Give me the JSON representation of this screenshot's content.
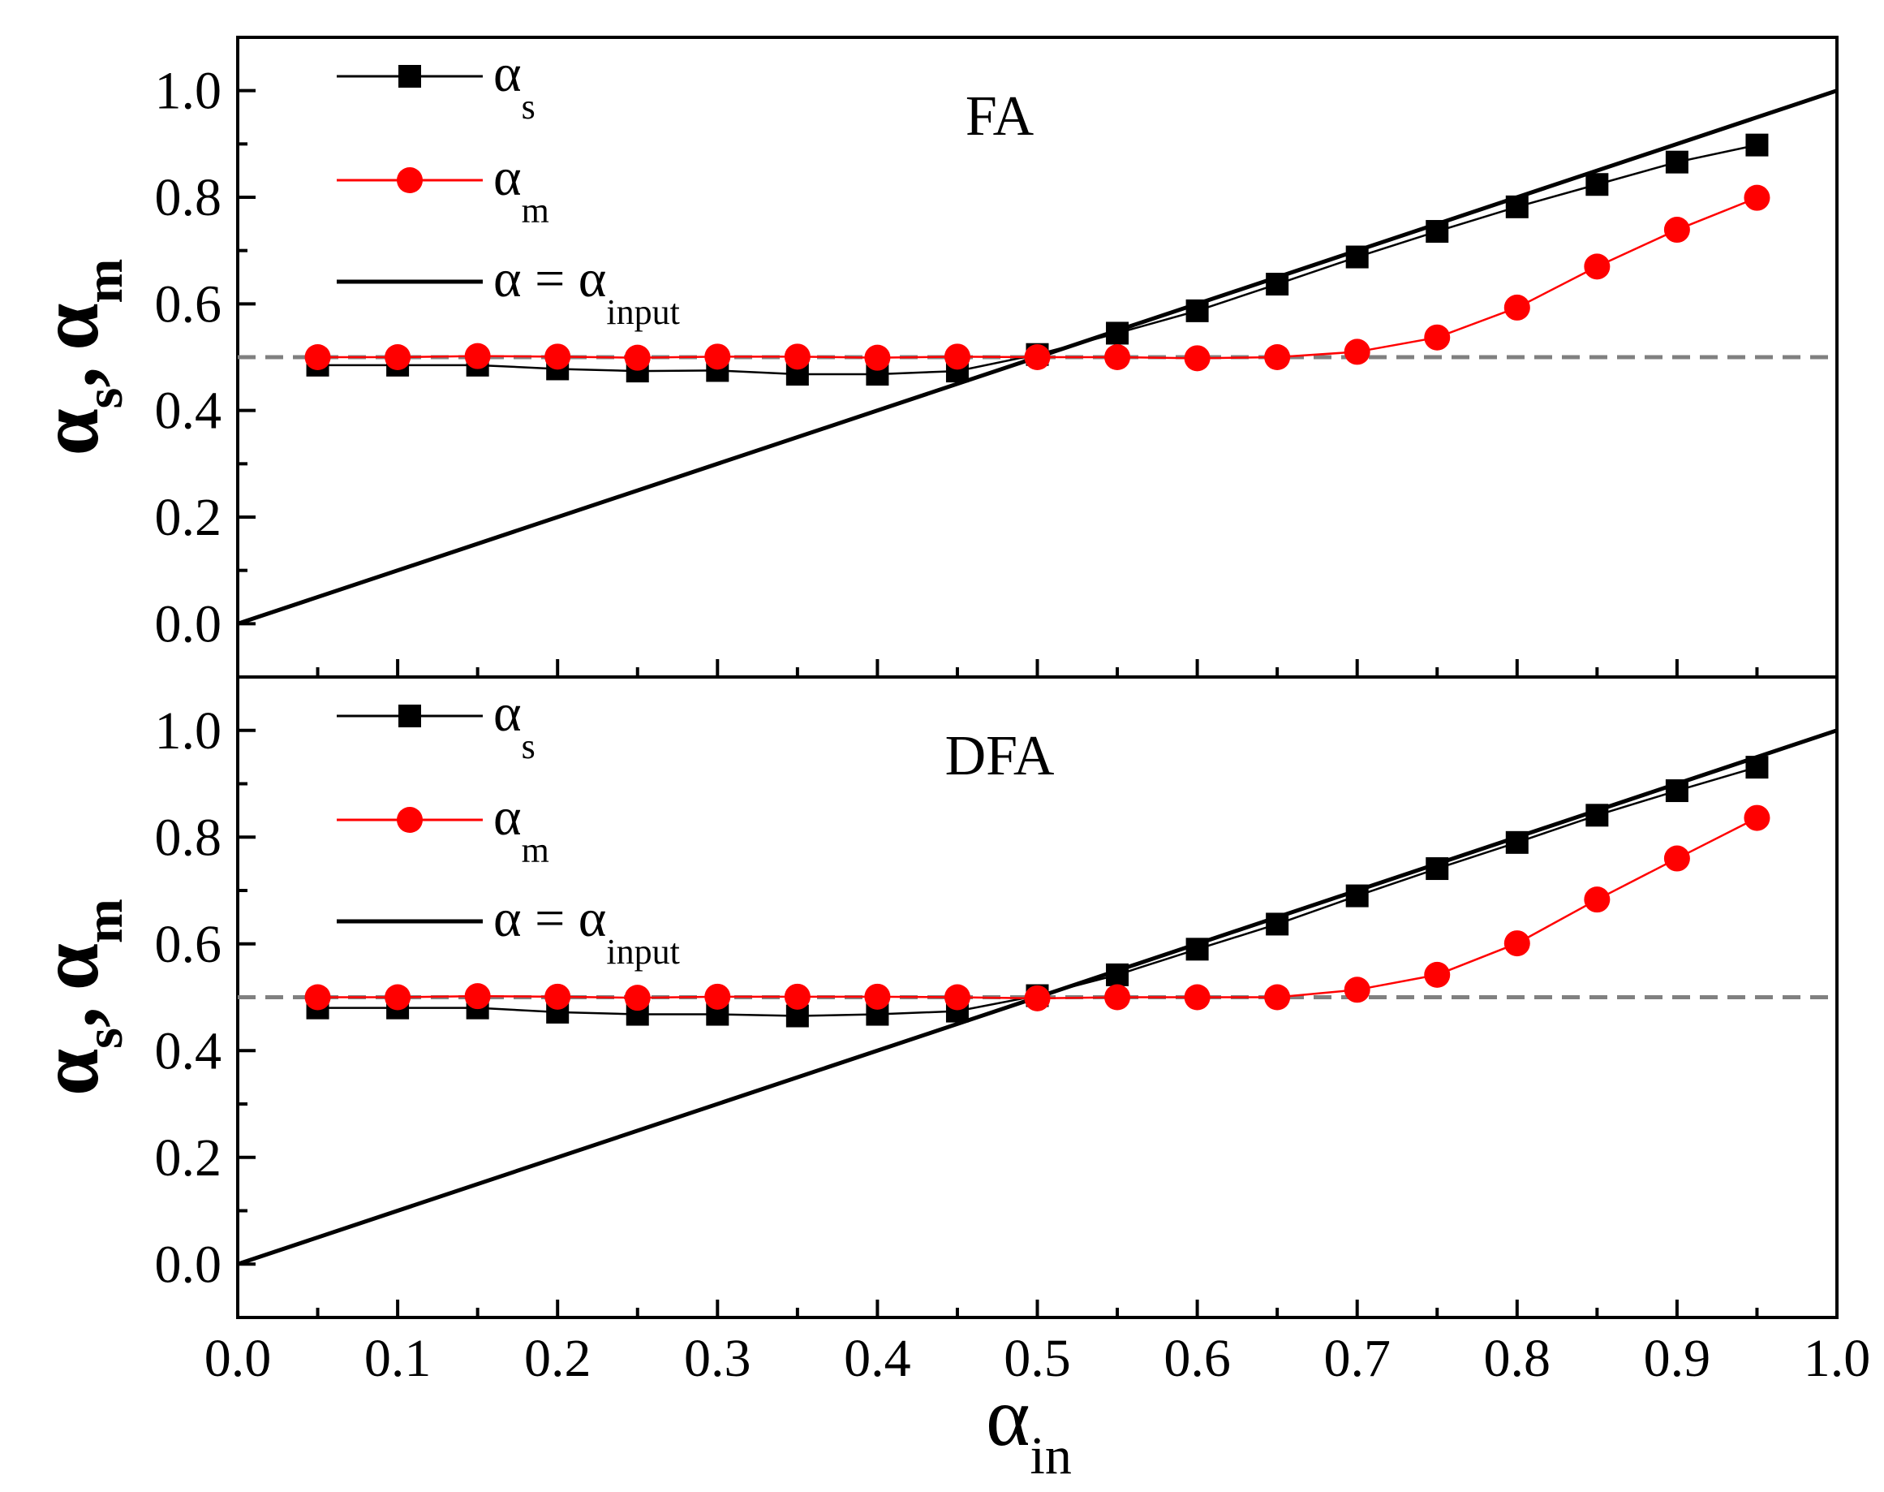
{
  "colors": {
    "series_s": "#000000",
    "series_m": "#ff0000",
    "reference_line": "#000000",
    "baseline_dash": "#808080"
  },
  "x_axis": {
    "symbol": "α",
    "subscript": "in",
    "ticks": [
      "0.0",
      "0.1",
      "0.2",
      "0.3",
      "0.4",
      "0.5",
      "0.6",
      "0.7",
      "0.8",
      "0.9",
      "1.0"
    ]
  },
  "chart_data": [
    {
      "type": "line",
      "title": "FA",
      "xlabel": "α_in",
      "ylabel": "α_s, α_m",
      "ylabel_parts": {
        "s1": "α",
        "sub1": "s",
        "sep": ",",
        "s2": "α",
        "sub2": "m"
      },
      "xlim": [
        0.0,
        1.0
      ],
      "ylim": [
        -0.1,
        1.1
      ],
      "yticks": [
        0.0,
        0.2,
        0.4,
        0.6,
        0.8,
        1.0
      ],
      "ytick_labels": [
        "0.0",
        "0.2",
        "0.4",
        "0.6",
        "0.8",
        "1.0"
      ],
      "baseline": 0.5,
      "x": [
        0.05,
        0.1,
        0.15,
        0.2,
        0.25,
        0.3,
        0.35,
        0.4,
        0.45,
        0.5,
        0.55,
        0.6,
        0.65,
        0.7,
        0.75,
        0.8,
        0.85,
        0.9,
        0.95
      ],
      "series": [
        {
          "name": "α_s",
          "symbol": "α",
          "sub": "s",
          "marker": "square",
          "values": [
            0.485,
            0.485,
            0.485,
            0.478,
            0.474,
            0.475,
            0.468,
            0.468,
            0.474,
            0.505,
            0.545,
            0.587,
            0.637,
            0.688,
            0.736,
            0.782,
            0.824,
            0.866,
            0.898
          ]
        },
        {
          "name": "α_m",
          "symbol": "α",
          "sub": "m",
          "marker": "circle",
          "values": [
            0.5,
            0.5,
            0.502,
            0.501,
            0.499,
            0.501,
            0.501,
            0.499,
            0.501,
            0.5,
            0.5,
            0.498,
            0.5,
            0.51,
            0.537,
            0.593,
            0.67,
            0.739,
            0.799
          ]
        },
        {
          "name": "α = α_input",
          "symbol": "α = α",
          "sub": "input",
          "marker": "none",
          "line": [
            [
              0.0,
              0.0
            ],
            [
              1.0,
              1.0
            ]
          ]
        }
      ]
    },
    {
      "type": "line",
      "title": "DFA",
      "xlabel": "α_in",
      "ylabel": "α_s, α_m",
      "ylabel_parts": {
        "s1": "α",
        "sub1": "s",
        "sep": ",",
        "s2": "α",
        "sub2": "m"
      },
      "xlim": [
        0.0,
        1.0
      ],
      "ylim": [
        -0.1,
        1.1
      ],
      "yticks": [
        0.0,
        0.2,
        0.4,
        0.6,
        0.8,
        1.0
      ],
      "ytick_labels": [
        "0.0",
        "0.2",
        "0.4",
        "0.6",
        "0.8",
        "1.0"
      ],
      "baseline": 0.5,
      "x": [
        0.05,
        0.1,
        0.15,
        0.2,
        0.25,
        0.3,
        0.35,
        0.4,
        0.45,
        0.5,
        0.55,
        0.6,
        0.65,
        0.7,
        0.75,
        0.8,
        0.85,
        0.9,
        0.95
      ],
      "series": [
        {
          "name": "α_s",
          "symbol": "α",
          "sub": "s",
          "marker": "square",
          "values": [
            0.48,
            0.48,
            0.48,
            0.472,
            0.468,
            0.468,
            0.465,
            0.468,
            0.474,
            0.503,
            0.542,
            0.59,
            0.637,
            0.69,
            0.741,
            0.79,
            0.841,
            0.887,
            0.931
          ]
        },
        {
          "name": "α_m",
          "symbol": "α",
          "sub": "m",
          "marker": "circle",
          "values": [
            0.5,
            0.5,
            0.502,
            0.501,
            0.499,
            0.501,
            0.501,
            0.501,
            0.5,
            0.498,
            0.5,
            0.5,
            0.5,
            0.514,
            0.542,
            0.601,
            0.683,
            0.76,
            0.836
          ]
        },
        {
          "name": "α = α_input",
          "symbol": "α = α",
          "sub": "input",
          "marker": "none",
          "line": [
            [
              0.0,
              0.0
            ],
            [
              1.0,
              1.0
            ]
          ]
        }
      ]
    }
  ]
}
